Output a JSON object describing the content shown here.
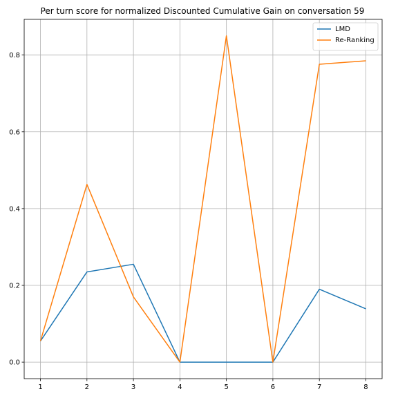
{
  "chart_data": {
    "type": "line",
    "title": "Per turn score for normalized Discounted Cumulative Gain on conversation 59",
    "xlabel": "",
    "ylabel": "",
    "x": [
      1,
      2,
      3,
      4,
      5,
      6,
      7,
      8
    ],
    "xlim": [
      0.65,
      8.35
    ],
    "ylim": [
      -0.043,
      0.893
    ],
    "x_ticks": [
      1,
      2,
      3,
      4,
      5,
      6,
      7,
      8
    ],
    "y_ticks": [
      0.0,
      0.2,
      0.4,
      0.6,
      0.8
    ],
    "y_tick_labels": [
      "0.0",
      "0.2",
      "0.4",
      "0.6",
      "0.8"
    ],
    "grid": true,
    "legend_position": "top-right",
    "series": [
      {
        "name": "LMD",
        "color": "#1f77b4",
        "values": [
          0.055,
          0.235,
          0.255,
          0.0,
          0.0,
          0.0,
          0.19,
          0.139
        ]
      },
      {
        "name": "Re-Ranking",
        "color": "#ff7f0e",
        "values": [
          0.055,
          0.463,
          0.17,
          0.0,
          0.85,
          0.0,
          0.776,
          0.785
        ]
      }
    ]
  }
}
